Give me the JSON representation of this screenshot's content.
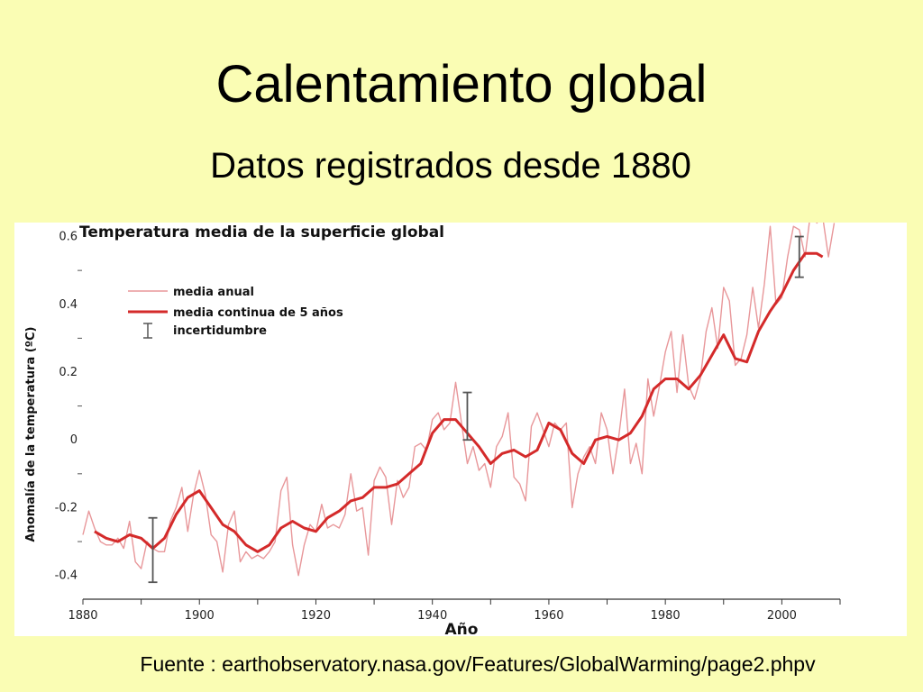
{
  "slide": {
    "title": "Calentamiento global",
    "subtitle": "Datos registrados desde 1880",
    "source": "Fuente : earthobservatory.nasa.gov/Features/GlobalWarming/page2.phpv"
  },
  "colors": {
    "background": "#fafdb4",
    "annual_line": "#e8979a",
    "smooth_line": "#d42a2a",
    "error_bar": "#555555"
  },
  "chart_data": {
    "type": "line",
    "title": "Temperatura media de la superficie global",
    "xlabel": "Año",
    "ylabel": "Anomalía de la temperatura (ºC)",
    "xlim": [
      1880,
      2010
    ],
    "ylim": [
      -0.47,
      0.62
    ],
    "x_ticks": [
      1880,
      1900,
      1920,
      1940,
      1960,
      1980,
      2000
    ],
    "y_ticks": [
      "-0.4",
      "-0.2",
      "0",
      "0.2",
      "0.4",
      "0.6"
    ],
    "y_tick_values": [
      -0.4,
      -0.2,
      0,
      0.2,
      0.4,
      0.6
    ],
    "legend_position": "top-left",
    "legend": {
      "annual": "media anual",
      "smooth": "media continua de 5 años",
      "uncertainty": "incertidumbre"
    },
    "series": [
      {
        "name": "media anual",
        "x": [
          1880,
          1881,
          1882,
          1883,
          1884,
          1885,
          1886,
          1887,
          1888,
          1889,
          1890,
          1891,
          1892,
          1893,
          1894,
          1895,
          1896,
          1897,
          1898,
          1899,
          1900,
          1901,
          1902,
          1903,
          1904,
          1905,
          1906,
          1907,
          1908,
          1909,
          1910,
          1911,
          1912,
          1913,
          1914,
          1915,
          1916,
          1917,
          1918,
          1919,
          1920,
          1921,
          1922,
          1923,
          1924,
          1925,
          1926,
          1927,
          1928,
          1929,
          1930,
          1931,
          1932,
          1933,
          1934,
          1935,
          1936,
          1937,
          1938,
          1939,
          1940,
          1941,
          1942,
          1943,
          1944,
          1945,
          1946,
          1947,
          1948,
          1949,
          1950,
          1951,
          1952,
          1953,
          1954,
          1955,
          1956,
          1957,
          1958,
          1959,
          1960,
          1961,
          1962,
          1963,
          1964,
          1965,
          1966,
          1967,
          1968,
          1969,
          1970,
          1971,
          1972,
          1973,
          1974,
          1975,
          1976,
          1977,
          1978,
          1979,
          1980,
          1981,
          1982,
          1983,
          1984,
          1985,
          1986,
          1987,
          1988,
          1989,
          1990,
          1991,
          1992,
          1993,
          1994,
          1995,
          1996,
          1997,
          1998,
          1999,
          2000,
          2001,
          2002,
          2003,
          2004,
          2005,
          2006,
          2007,
          2008,
          2009
        ],
        "values": [
          -0.28,
          -0.21,
          -0.26,
          -0.3,
          -0.31,
          -0.31,
          -0.29,
          -0.32,
          -0.24,
          -0.36,
          -0.38,
          -0.3,
          -0.32,
          -0.33,
          -0.33,
          -0.24,
          -0.2,
          -0.14,
          -0.27,
          -0.16,
          -0.09,
          -0.16,
          -0.28,
          -0.3,
          -0.39,
          -0.25,
          -0.21,
          -0.36,
          -0.33,
          -0.35,
          -0.34,
          -0.35,
          -0.33,
          -0.3,
          -0.15,
          -0.11,
          -0.31,
          -0.4,
          -0.31,
          -0.25,
          -0.27,
          -0.19,
          -0.26,
          -0.25,
          -0.26,
          -0.22,
          -0.1,
          -0.21,
          -0.2,
          -0.34,
          -0.12,
          -0.08,
          -0.11,
          -0.25,
          -0.12,
          -0.17,
          -0.14,
          -0.02,
          -0.01,
          -0.03,
          0.06,
          0.08,
          0.03,
          0.05,
          0.17,
          0.05,
          -0.07,
          -0.02,
          -0.09,
          -0.07,
          -0.14,
          -0.02,
          0.01,
          0.08,
          -0.11,
          -0.13,
          -0.18,
          0.04,
          0.08,
          0.03,
          -0.02,
          0.05,
          0.03,
          0.05,
          -0.2,
          -0.1,
          -0.05,
          -0.02,
          -0.07,
          0.08,
          0.03,
          -0.1,
          0.01,
          0.15,
          -0.07,
          -0.01,
          -0.1,
          0.18,
          0.07,
          0.16,
          0.26,
          0.32,
          0.14,
          0.31,
          0.16,
          0.12,
          0.18,
          0.32,
          0.39,
          0.27,
          0.45,
          0.41,
          0.22,
          0.24,
          0.31,
          0.45,
          0.33,
          0.46,
          0.63,
          0.4,
          0.42,
          0.54,
          0.63,
          0.62,
          0.54,
          0.68,
          0.64,
          0.66,
          0.54,
          0.64
        ]
      },
      {
        "name": "media continua de 5 años",
        "x": [
          1882,
          1884,
          1886,
          1888,
          1890,
          1892,
          1894,
          1896,
          1898,
          1900,
          1902,
          1904,
          1906,
          1908,
          1910,
          1912,
          1914,
          1916,
          1918,
          1920,
          1922,
          1924,
          1926,
          1928,
          1930,
          1932,
          1934,
          1936,
          1938,
          1940,
          1942,
          1944,
          1946,
          1948,
          1950,
          1952,
          1954,
          1956,
          1958,
          1960,
          1962,
          1964,
          1966,
          1968,
          1970,
          1972,
          1974,
          1976,
          1978,
          1980,
          1982,
          1984,
          1986,
          1988,
          1990,
          1992,
          1994,
          1996,
          1998,
          2000,
          2002,
          2004,
          2006,
          2007
        ],
        "values": [
          -0.27,
          -0.29,
          -0.3,
          -0.28,
          -0.29,
          -0.32,
          -0.29,
          -0.22,
          -0.17,
          -0.15,
          -0.2,
          -0.25,
          -0.27,
          -0.31,
          -0.33,
          -0.31,
          -0.26,
          -0.24,
          -0.26,
          -0.27,
          -0.23,
          -0.21,
          -0.18,
          -0.17,
          -0.14,
          -0.14,
          -0.13,
          -0.1,
          -0.07,
          0.02,
          0.06,
          0.06,
          0.02,
          -0.02,
          -0.07,
          -0.04,
          -0.03,
          -0.05,
          -0.03,
          0.05,
          0.03,
          -0.04,
          -0.07,
          0.0,
          0.01,
          0.0,
          0.02,
          0.07,
          0.15,
          0.18,
          0.18,
          0.15,
          0.19,
          0.25,
          0.31,
          0.24,
          0.23,
          0.32,
          0.38,
          0.43,
          0.5,
          0.55,
          0.55,
          0.54
        ]
      }
    ],
    "uncertainty_bars": [
      {
        "x": 1892,
        "low": -0.42,
        "high": -0.23
      },
      {
        "x": 1946,
        "low": 0.0,
        "high": 0.14
      },
      {
        "x": 2003,
        "low": 0.48,
        "high": 0.6
      }
    ]
  }
}
